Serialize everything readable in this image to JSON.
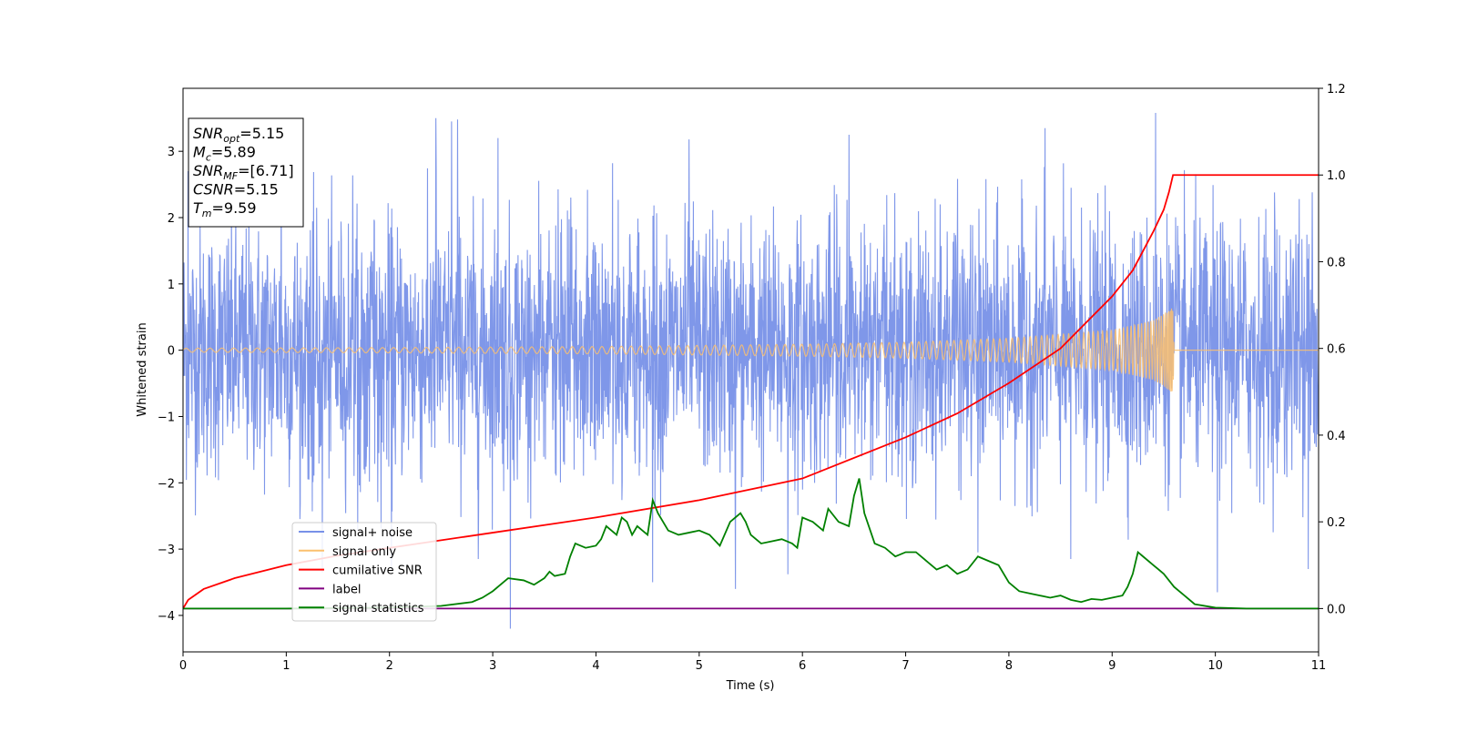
{
  "chart_data": {
    "type": "line",
    "xlabel": "Time (s)",
    "ylabel": "Whitened strain",
    "xlim": [
      0,
      11
    ],
    "ylim": [
      -4.55,
      3.95
    ],
    "y2lim": [
      -0.1,
      1.2
    ],
    "xticks": [
      "0",
      "1",
      "2",
      "3",
      "4",
      "5",
      "6",
      "7",
      "8",
      "9",
      "10",
      "11"
    ],
    "yticks": [
      {
        "value": 3,
        "label": "3"
      },
      {
        "value": 2,
        "label": "2"
      },
      {
        "value": 1,
        "label": "1"
      },
      {
        "value": 0,
        "label": "0"
      },
      {
        "value": -1,
        "label": "−1"
      },
      {
        "value": -2,
        "label": "−2"
      },
      {
        "value": -3,
        "label": "−3"
      },
      {
        "value": -4,
        "label": "−4"
      }
    ],
    "y2ticks": [
      "0.0",
      "0.2",
      "0.4",
      "0.6",
      "0.8",
      "1.0",
      "1.2"
    ],
    "legend_position": "lower-left",
    "annotation": {
      "lines": [
        {
          "base": "SNR",
          "sub": "opt",
          "rest": "=5.15"
        },
        {
          "base": "M",
          "sub": "c",
          "rest": "=5.89"
        },
        {
          "base": "SNR",
          "sub": "MF",
          "rest": "=[6.71]"
        },
        {
          "base": "CSNR",
          "sub": "",
          "rest": "=5.15"
        },
        {
          "base": "T",
          "sub": "m",
          "rest": "=9.59"
        }
      ]
    },
    "series": [
      {
        "name": "signal+ noise",
        "color": "#7891e8",
        "axis": "left",
        "kind": "noise",
        "std": 0.95,
        "peaks": [
          [
            0.05,
            2.7
          ],
          [
            0.95,
            3.05
          ],
          [
            1.35,
            -3.35
          ],
          [
            2.02,
            -3.3
          ],
          [
            2.45,
            3.5
          ],
          [
            2.6,
            3.45
          ],
          [
            2.66,
            3.48
          ],
          [
            2.86,
            -3.15
          ],
          [
            3.05,
            3.2
          ],
          [
            3.17,
            -4.2
          ],
          [
            4.16,
            2.82
          ],
          [
            4.55,
            -3.5
          ],
          [
            4.9,
            3.18
          ],
          [
            5.35,
            -3.6
          ],
          [
            5.86,
            -3.38
          ],
          [
            6.45,
            3.25
          ],
          [
            7.7,
            -3.05
          ],
          [
            8.35,
            3.35
          ],
          [
            8.6,
            -3.15
          ],
          [
            9.42,
            3.58
          ],
          [
            10.02,
            -3.65
          ],
          [
            10.9,
            -3.3
          ]
        ],
        "envelope": [
          [
            0,
            2.6
          ],
          [
            2.4,
            2.8
          ],
          [
            4.5,
            2.5
          ],
          [
            6.5,
            2.6
          ],
          [
            9.4,
            3.0
          ],
          [
            11,
            2.7
          ]
        ]
      },
      {
        "name": "signal only",
        "color": "#fbc06e",
        "axis": "left",
        "kind": "chirp",
        "t_merge": 9.59,
        "amplitude_points": [
          [
            0,
            0.03
          ],
          [
            2,
            0.04
          ],
          [
            4,
            0.055
          ],
          [
            6,
            0.09
          ],
          [
            7,
            0.12
          ],
          [
            8,
            0.18
          ],
          [
            9,
            0.3
          ],
          [
            9.4,
            0.45
          ],
          [
            9.55,
            0.6
          ],
          [
            9.59,
            0.65
          ],
          [
            9.6,
            0.0
          ],
          [
            11,
            0.0
          ]
        ]
      },
      {
        "name": "cumilative SNR",
        "color": "#ff0000",
        "axis": "right",
        "x": [
          0,
          0.05,
          0.2,
          0.5,
          1,
          1.5,
          2,
          3,
          4,
          5,
          6,
          7,
          7.5,
          8,
          8.5,
          9,
          9.2,
          9.4,
          9.5,
          9.55,
          9.59,
          9.6,
          10,
          11
        ],
        "values": [
          0.0,
          0.02,
          0.045,
          0.07,
          0.1,
          0.122,
          0.14,
          0.175,
          0.21,
          0.25,
          0.3,
          0.395,
          0.45,
          0.52,
          0.6,
          0.72,
          0.78,
          0.87,
          0.92,
          0.96,
          1.0,
          1.0,
          1.0,
          1.0
        ]
      },
      {
        "name": "label",
        "color": "#800080",
        "axis": "right",
        "x": [
          0,
          11
        ],
        "values": [
          0.0,
          0.0
        ]
      },
      {
        "name": "signal statistics",
        "color": "#008000",
        "axis": "right",
        "x": [
          0,
          1.0,
          2.0,
          2.5,
          2.8,
          2.9,
          3.0,
          3.1,
          3.15,
          3.3,
          3.4,
          3.5,
          3.55,
          3.6,
          3.7,
          3.75,
          3.8,
          3.9,
          4.0,
          4.05,
          4.1,
          4.2,
          4.25,
          4.3,
          4.35,
          4.4,
          4.45,
          4.5,
          4.55,
          4.6,
          4.7,
          4.8,
          4.9,
          5.0,
          5.1,
          5.2,
          5.3,
          5.4,
          5.45,
          5.5,
          5.6,
          5.7,
          5.8,
          5.9,
          5.95,
          6.0,
          6.1,
          6.2,
          6.25,
          6.35,
          6.45,
          6.5,
          6.55,
          6.6,
          6.7,
          6.8,
          6.9,
          7.0,
          7.1,
          7.2,
          7.3,
          7.4,
          7.5,
          7.6,
          7.7,
          7.8,
          7.9,
          8.0,
          8.1,
          8.2,
          8.3,
          8.4,
          8.5,
          8.6,
          8.7,
          8.8,
          8.9,
          9.0,
          9.1,
          9.15,
          9.2,
          9.25,
          9.3,
          9.4,
          9.5,
          9.6,
          9.7,
          9.8,
          10.0,
          10.3,
          10.6,
          11
        ],
        "values": [
          0.0,
          0.0,
          0.002,
          0.006,
          0.015,
          0.025,
          0.04,
          0.06,
          0.07,
          0.065,
          0.055,
          0.07,
          0.085,
          0.075,
          0.08,
          0.12,
          0.15,
          0.14,
          0.145,
          0.16,
          0.19,
          0.17,
          0.21,
          0.2,
          0.17,
          0.19,
          0.18,
          0.17,
          0.25,
          0.22,
          0.18,
          0.17,
          0.175,
          0.18,
          0.17,
          0.145,
          0.2,
          0.22,
          0.2,
          0.17,
          0.15,
          0.155,
          0.16,
          0.15,
          0.14,
          0.21,
          0.2,
          0.18,
          0.23,
          0.2,
          0.19,
          0.26,
          0.3,
          0.22,
          0.15,
          0.14,
          0.12,
          0.13,
          0.13,
          0.11,
          0.09,
          0.1,
          0.08,
          0.09,
          0.12,
          0.11,
          0.1,
          0.06,
          0.04,
          0.035,
          0.03,
          0.025,
          0.03,
          0.02,
          0.015,
          0.022,
          0.02,
          0.025,
          0.03,
          0.05,
          0.08,
          0.13,
          0.12,
          0.1,
          0.08,
          0.05,
          0.03,
          0.01,
          0.002,
          0.0,
          0.0,
          0.0
        ]
      }
    ]
  }
}
